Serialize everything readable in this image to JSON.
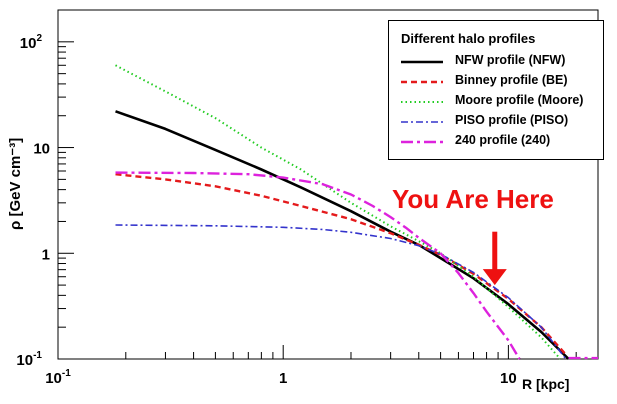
{
  "chart_data": {
    "type": "line",
    "title": "",
    "xlabel": "R [kpc]",
    "ylabel": "ρ [GeV cm⁻³]",
    "xscale": "log",
    "yscale": "log",
    "xlim": [
      0.1,
      25
    ],
    "ylim": [
      0.1,
      200
    ],
    "x_ticks": [
      {
        "value": 0.1,
        "base": "10",
        "exp": "-1"
      },
      {
        "value": 1,
        "base": "1",
        "exp": ""
      },
      {
        "value": 10,
        "base": "10",
        "exp": ""
      }
    ],
    "y_ticks": [
      {
        "value": 0.1,
        "base": "10",
        "exp": "-1"
      },
      {
        "value": 1,
        "base": "1",
        "exp": ""
      },
      {
        "value": 10,
        "base": "10",
        "exp": ""
      },
      {
        "value": 100,
        "base": "10",
        "exp": "2"
      }
    ],
    "legend": {
      "title": "Different halo profiles",
      "position": "top-right"
    },
    "series": [
      {
        "name": "NFW profile (NFW)",
        "color": "#000000",
        "style": "solid",
        "x": [
          0.18,
          0.3,
          0.5,
          0.8,
          1.2,
          2,
          3,
          4,
          5,
          7,
          10,
          14,
          18.5
        ],
        "y": [
          22,
          15,
          9.5,
          6.2,
          4.2,
          2.5,
          1.6,
          1.2,
          0.9,
          0.58,
          0.33,
          0.18,
          0.1
        ]
      },
      {
        "name": "Binney profile (BE)",
        "color": "#e41a1c",
        "style": "dashed",
        "x": [
          0.18,
          0.3,
          0.5,
          0.8,
          1.2,
          2,
          3,
          4,
          5,
          7,
          10,
          14,
          18
        ],
        "y": [
          5.6,
          5.0,
          4.3,
          3.5,
          2.8,
          2.1,
          1.55,
          1.2,
          0.97,
          0.64,
          0.37,
          0.2,
          0.11
        ]
      },
      {
        "name": "Moore profile (Moore)",
        "color": "#22cc22",
        "style": "dotted",
        "x": [
          0.18,
          0.3,
          0.5,
          0.8,
          1.2,
          2,
          3,
          4,
          5,
          7,
          10,
          14,
          17
        ],
        "y": [
          60,
          34,
          19,
          10,
          6.2,
          3.0,
          1.8,
          1.3,
          1.0,
          0.6,
          0.31,
          0.16,
          0.1
        ]
      },
      {
        "name": "PISO profile (PISO)",
        "color": "#3333cc",
        "style": "dashdot",
        "x": [
          0.18,
          0.5,
          1,
          1.5,
          2,
          3,
          4,
          5,
          7,
          10,
          14,
          18
        ],
        "y": [
          1.85,
          1.82,
          1.76,
          1.68,
          1.58,
          1.38,
          1.18,
          0.98,
          0.66,
          0.38,
          0.2,
          0.1
        ]
      },
      {
        "name": "240 profile (240)",
        "color": "#dd22dd",
        "style": "longdashdot",
        "x": [
          0.18,
          0.4,
          0.7,
          1,
          1.5,
          2,
          2.5,
          3,
          3.5,
          4,
          5,
          6,
          7,
          8,
          10,
          11.2
        ],
        "y": [
          5.8,
          5.75,
          5.6,
          5.2,
          4.5,
          3.6,
          2.8,
          2.2,
          1.75,
          1.4,
          1.0,
          0.65,
          0.42,
          0.28,
          0.15,
          0.1
        ]
      }
    ],
    "annotations": [
      {
        "text": "You Are Here",
        "color": "#ee1111",
        "arrow_x": 8.7,
        "arrow_y_top": 1.6,
        "arrow_y_bottom": 0.5
      }
    ]
  }
}
